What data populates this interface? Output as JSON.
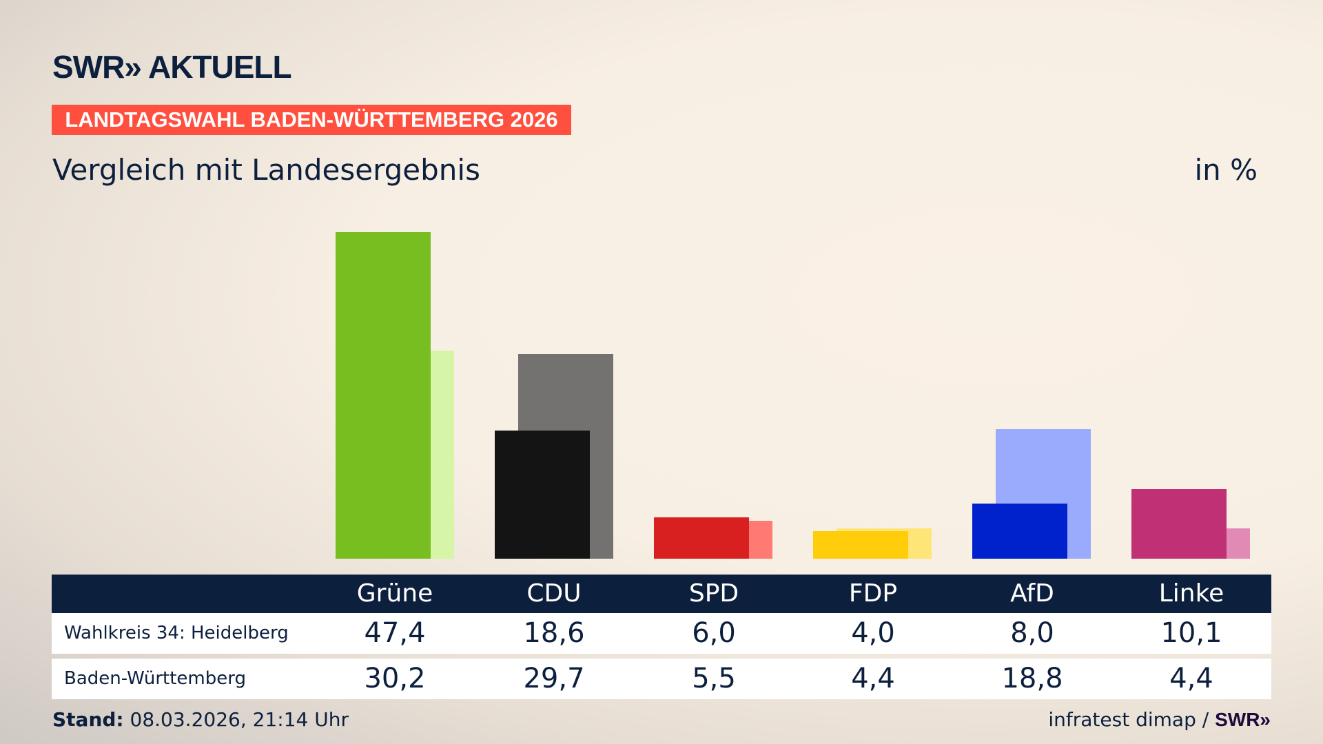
{
  "header": {
    "logo": "SWR» AKTUELL",
    "banner": "LANDTAGSWAHL BADEN-WÜRTTEMBERG 2026",
    "subtitle": "Vergleich mit Landesergebnis",
    "unit": "in %"
  },
  "chart_data": {
    "type": "bar",
    "categories": [
      "Grüne",
      "CDU",
      "SPD",
      "FDP",
      "AfD",
      "Linke"
    ],
    "series": [
      {
        "name": "Wahlkreis 34: Heidelberg",
        "values": [
          47.4,
          18.6,
          6.0,
          4.0,
          8.0,
          10.1
        ],
        "colors": [
          "#78be20",
          "#141414",
          "#d7201f",
          "#ffcd0a",
          "#0022cc",
          "#bf3075"
        ]
      },
      {
        "name": "Baden-Württemberg",
        "values": [
          30.2,
          29.7,
          5.5,
          4.4,
          18.8,
          4.4
        ],
        "colors": [
          "#d6f5a8",
          "#737271",
          "#ff7a72",
          "#ffe477",
          "#9aaafc",
          "#e08ab5"
        ]
      }
    ],
    "ylim": [
      0,
      50
    ],
    "grid": false
  },
  "table": {
    "headers": [
      "Grüne",
      "CDU",
      "SPD",
      "FDP",
      "AfD",
      "Linke"
    ],
    "rows": [
      {
        "label": "Wahlkreis 34: Heidelberg",
        "values": [
          "47,4",
          "18,6",
          "6,0",
          "4,0",
          "8,0",
          "10,1"
        ]
      },
      {
        "label": "Baden-Württemberg",
        "values": [
          "30,2",
          "29,7",
          "5,5",
          "4,4",
          "18,8",
          "4,4"
        ]
      }
    ]
  },
  "footer": {
    "stand_label": "Stand:",
    "stand_value": " 08.03.2026, 21:14 Uhr",
    "source": "infratest dimap / ",
    "source_logo": "SWR»"
  }
}
